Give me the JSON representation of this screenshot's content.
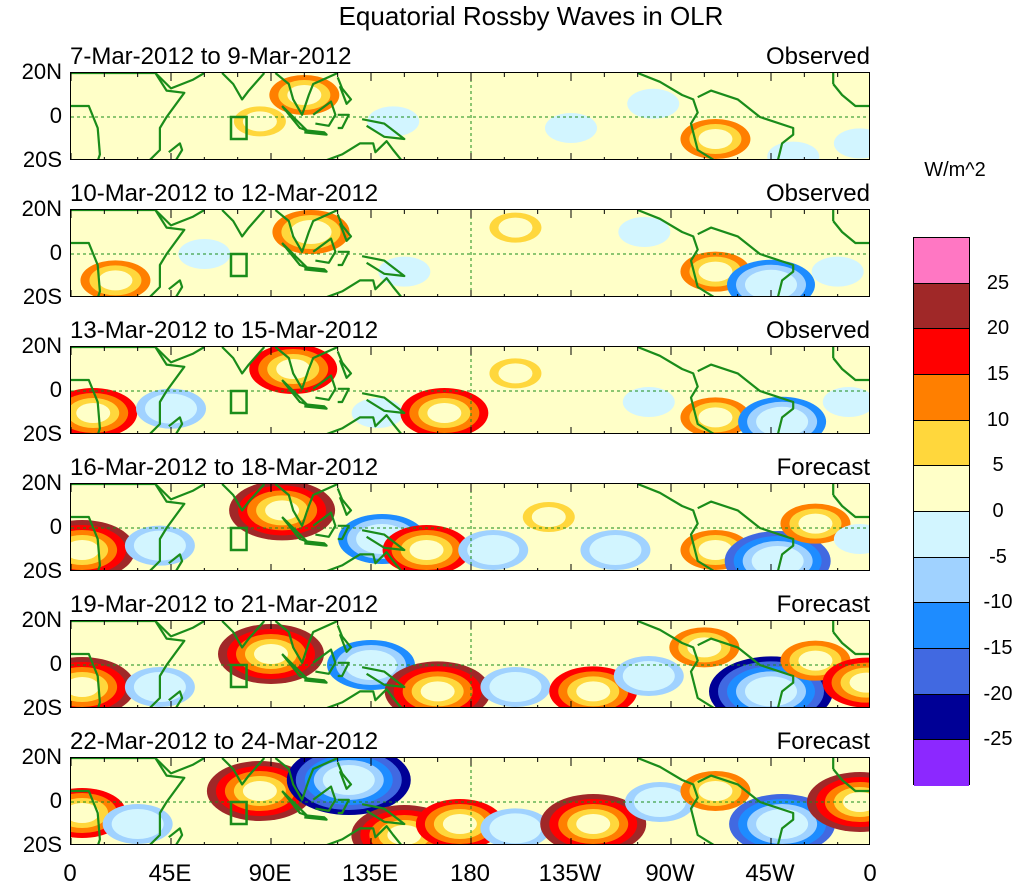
{
  "title": "Equatorial Rossby Waves in OLR",
  "panels": [
    {
      "dates": "7-Mar-2012 to 9-Mar-2012",
      "status": "Observed",
      "anomalies": [
        [
          85,
          -2,
          5
        ],
        [
          105,
          10,
          10
        ],
        [
          145,
          -2,
          -5
        ],
        [
          225,
          -5,
          -5
        ],
        [
          262,
          6,
          -5
        ],
        [
          290,
          -10,
          10
        ],
        [
          325,
          -18,
          -5
        ],
        [
          355,
          -12,
          -5
        ]
      ]
    },
    {
      "dates": "10-Mar-2012 to 12-Mar-2012",
      "status": "Observed",
      "anomalies": [
        [
          20,
          -12,
          10
        ],
        [
          60,
          0,
          -5
        ],
        [
          108,
          10,
          12
        ],
        [
          150,
          -8,
          -5
        ],
        [
          200,
          12,
          5
        ],
        [
          258,
          10,
          -5
        ],
        [
          290,
          -8,
          10
        ],
        [
          315,
          -14,
          -15
        ],
        [
          345,
          -8,
          -5
        ]
      ]
    },
    {
      "dates": "13-Mar-2012 to 15-Mar-2012",
      "status": "Observed",
      "anomalies": [
        [
          10,
          -10,
          15
        ],
        [
          45,
          -8,
          -10
        ],
        [
          100,
          10,
          15
        ],
        [
          138,
          -10,
          -5
        ],
        [
          168,
          -10,
          15
        ],
        [
          200,
          8,
          5
        ],
        [
          260,
          -5,
          -5
        ],
        [
          290,
          -12,
          10
        ],
        [
          320,
          -14,
          -15
        ],
        [
          350,
          -5,
          -5
        ]
      ]
    },
    {
      "dates": "16-Mar-2012 to 18-Mar-2012",
      "status": "Forecast",
      "anomalies": [
        [
          5,
          -10,
          20
        ],
        [
          40,
          -8,
          -10
        ],
        [
          95,
          8,
          20
        ],
        [
          140,
          -5,
          -15
        ],
        [
          160,
          -10,
          15
        ],
        [
          190,
          -10,
          -10
        ],
        [
          215,
          5,
          5
        ],
        [
          245,
          -10,
          -10
        ],
        [
          290,
          -10,
          10
        ],
        [
          318,
          -15,
          -20
        ],
        [
          335,
          2,
          10
        ],
        [
          355,
          -5,
          -5
        ]
      ]
    },
    {
      "dates": "19-Mar-2012 to 21-Mar-2012",
      "status": "Forecast",
      "anomalies": [
        [
          5,
          -10,
          20
        ],
        [
          40,
          -10,
          -10
        ],
        [
          90,
          5,
          20
        ],
        [
          135,
          0,
          -15
        ],
        [
          165,
          -12,
          20
        ],
        [
          200,
          -10,
          -10
        ],
        [
          235,
          -12,
          15
        ],
        [
          260,
          -5,
          -10
        ],
        [
          285,
          8,
          10
        ],
        [
          315,
          -12,
          -25
        ],
        [
          335,
          2,
          10
        ],
        [
          358,
          -8,
          15
        ]
      ]
    },
    {
      "dates": "22-Mar-2012 to 24-Mar-2012",
      "status": "Forecast",
      "anomalies": [
        [
          5,
          -5,
          15
        ],
        [
          30,
          -10,
          -10
        ],
        [
          85,
          5,
          20
        ],
        [
          125,
          10,
          -25
        ],
        [
          150,
          -15,
          20
        ],
        [
          175,
          -10,
          15
        ],
        [
          200,
          -12,
          -10
        ],
        [
          235,
          -10,
          20
        ],
        [
          265,
          0,
          -10
        ],
        [
          290,
          5,
          10
        ],
        [
          320,
          -10,
          -20
        ],
        [
          355,
          0,
          20
        ]
      ]
    }
  ],
  "lat_labels": [
    "20N",
    "0",
    "20S"
  ],
  "lon_labels": [
    "0",
    "45E",
    "90E",
    "135E",
    "180",
    "135W",
    "90W",
    "45W",
    "0"
  ],
  "legend": {
    "unit": "W/m^2",
    "levels": [
      "25",
      "20",
      "15",
      "10",
      "5",
      "0",
      "-5",
      "-10",
      "-15",
      "-20",
      "-25"
    ],
    "colors": [
      "#ff77c3",
      "#a02828",
      "#ff0000",
      "#ff7f00",
      "#ffd73c",
      "#ffffc8",
      "#d2f5ff",
      "#a0d2ff",
      "#1e8cff",
      "#4169e1",
      "#000096",
      "#8c28ff"
    ]
  }
}
